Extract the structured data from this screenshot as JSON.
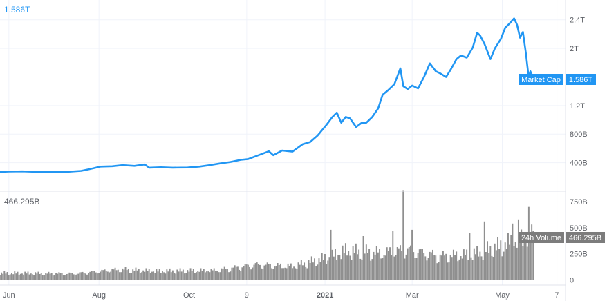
{
  "chart_data": {
    "type": "line",
    "colors": {
      "market_cap": "#2196f3",
      "volume": "#8f8f8f",
      "volume_tag": "#7c7c7c",
      "grid": "#e6e6e6",
      "text": "#5d6066"
    },
    "market_cap": {
      "corner_label": "1.586T",
      "series_name": "Market Cap",
      "last_value_label": "1.586T",
      "y_ticks": [
        {
          "label": "400B",
          "value": 400
        },
        {
          "label": "800B",
          "value": 800
        },
        {
          "label": "1.2T",
          "value": 1200
        },
        {
          "label": "2T",
          "value": 2000
        },
        {
          "label": "2.4T",
          "value": 2400
        }
      ],
      "ylim": [
        0,
        2600
      ],
      "points": [
        [
          "2020-05-26",
          270
        ],
        [
          "2020-06-01",
          275
        ],
        [
          "2020-06-10",
          278
        ],
        [
          "2020-06-20",
          272
        ],
        [
          "2020-06-30",
          268
        ],
        [
          "2020-07-10",
          272
        ],
        [
          "2020-07-20",
          285
        ],
        [
          "2020-07-28",
          320
        ],
        [
          "2020-08-02",
          345
        ],
        [
          "2020-08-10",
          350
        ],
        [
          "2020-08-17",
          365
        ],
        [
          "2020-08-25",
          355
        ],
        [
          "2020-09-01",
          375
        ],
        [
          "2020-09-04",
          330
        ],
        [
          "2020-09-12",
          335
        ],
        [
          "2020-09-20",
          330
        ],
        [
          "2020-09-30",
          332
        ],
        [
          "2020-10-08",
          345
        ],
        [
          "2020-10-15",
          365
        ],
        [
          "2020-10-22",
          390
        ],
        [
          "2020-10-29",
          410
        ],
        [
          "2020-11-05",
          440
        ],
        [
          "2020-11-10",
          450
        ],
        [
          "2020-11-17",
          505
        ],
        [
          "2020-11-24",
          560
        ],
        [
          "2020-11-27",
          505
        ],
        [
          "2020-12-03",
          570
        ],
        [
          "2020-12-10",
          555
        ],
        [
          "2020-12-17",
          660
        ],
        [
          "2020-12-22",
          690
        ],
        [
          "2020-12-27",
          780
        ],
        [
          "2021-01-02",
          930
        ],
        [
          "2021-01-06",
          1040
        ],
        [
          "2021-01-09",
          1100
        ],
        [
          "2021-01-12",
          960
        ],
        [
          "2021-01-15",
          1040
        ],
        [
          "2021-01-18",
          1020
        ],
        [
          "2021-01-22",
          900
        ],
        [
          "2021-01-26",
          960
        ],
        [
          "2021-01-29",
          960
        ],
        [
          "2021-02-02",
          1040
        ],
        [
          "2021-02-06",
          1160
        ],
        [
          "2021-02-09",
          1350
        ],
        [
          "2021-02-13",
          1420
        ],
        [
          "2021-02-17",
          1500
        ],
        [
          "2021-02-21",
          1720
        ],
        [
          "2021-02-23",
          1470
        ],
        [
          "2021-02-26",
          1430
        ],
        [
          "2021-03-01",
          1480
        ],
        [
          "2021-03-05",
          1440
        ],
        [
          "2021-03-09",
          1600
        ],
        [
          "2021-03-13",
          1790
        ],
        [
          "2021-03-17",
          1680
        ],
        [
          "2021-03-20",
          1650
        ],
        [
          "2021-03-24",
          1600
        ],
        [
          "2021-03-27",
          1700
        ],
        [
          "2021-03-31",
          1850
        ],
        [
          "2021-04-03",
          1900
        ],
        [
          "2021-04-07",
          1870
        ],
        [
          "2021-04-11",
          2010
        ],
        [
          "2021-04-14",
          2220
        ],
        [
          "2021-04-16",
          2180
        ],
        [
          "2021-04-19",
          2060
        ],
        [
          "2021-04-23",
          1850
        ],
        [
          "2021-04-26",
          2000
        ],
        [
          "2021-04-30",
          2130
        ],
        [
          "2021-05-03",
          2290
        ],
        [
          "2021-05-06",
          2350
        ],
        [
          "2021-05-09",
          2420
        ],
        [
          "2021-05-11",
          2330
        ],
        [
          "2021-05-13",
          2150
        ],
        [
          "2021-05-15",
          2230
        ],
        [
          "2021-05-17",
          1930
        ],
        [
          "2021-05-19",
          1570
        ],
        [
          "2021-05-20",
          1680
        ],
        [
          "2021-05-22",
          1586
        ]
      ]
    },
    "volume": {
      "corner_label": "466.295B",
      "series_name": "24h Volume",
      "last_value_label": "466.295B",
      "y_ticks": [
        {
          "label": "0",
          "value": 0
        },
        {
          "label": "250B",
          "value": 250
        },
        {
          "label": "500B",
          "value": 500
        },
        {
          "label": "750B",
          "value": 750
        }
      ],
      "ylim": [
        -50,
        850
      ],
      "trend": [
        [
          "2020-05-26",
          70
        ],
        [
          "2020-07-15",
          65
        ],
        [
          "2020-08-15",
          110
        ],
        [
          "2020-09-10",
          90
        ],
        [
          "2020-10-20",
          100
        ],
        [
          "2020-11-15",
          160
        ],
        [
          "2020-12-10",
          140
        ],
        [
          "2021-01-05",
          240
        ],
        [
          "2021-01-15",
          300
        ],
        [
          "2021-02-10",
          280
        ],
        [
          "2021-02-25",
          320
        ],
        [
          "2021-03-20",
          250
        ],
        [
          "2021-04-10",
          260
        ],
        [
          "2021-04-25",
          330
        ],
        [
          "2021-05-10",
          400
        ],
        [
          "2021-05-22",
          466
        ]
      ],
      "spikes": [
        [
          "2021-02-23",
          860
        ],
        [
          "2021-05-19",
          700
        ],
        [
          "2021-05-12",
          580
        ],
        [
          "2021-04-19",
          560
        ],
        [
          "2021-01-05",
          480
        ],
        [
          "2021-02-16",
          470
        ],
        [
          "2021-01-27",
          420
        ],
        [
          "2021-03-01",
          480
        ],
        [
          "2021-04-09",
          450
        ],
        [
          "2021-05-08",
          540
        ],
        [
          "2021-05-22",
          466
        ]
      ]
    },
    "x_axis": {
      "start": "2020-05-26",
      "end": "2021-06-10",
      "ticks": [
        {
          "label": "Jun",
          "date": "2020-06-01",
          "bold": false
        },
        {
          "label": "Aug",
          "date": "2020-08-01",
          "bold": false
        },
        {
          "label": "Oct",
          "date": "2020-10-01",
          "bold": false
        },
        {
          "label": "9",
          "date": "2020-11-09",
          "bold": false
        },
        {
          "label": "2021",
          "date": "2021-01-01",
          "bold": true
        },
        {
          "label": "Mar",
          "date": "2021-03-01",
          "bold": false
        },
        {
          "label": "May",
          "date": "2021-05-01",
          "bold": false
        },
        {
          "label": "7",
          "date": "2021-06-07",
          "bold": false
        }
      ]
    }
  }
}
